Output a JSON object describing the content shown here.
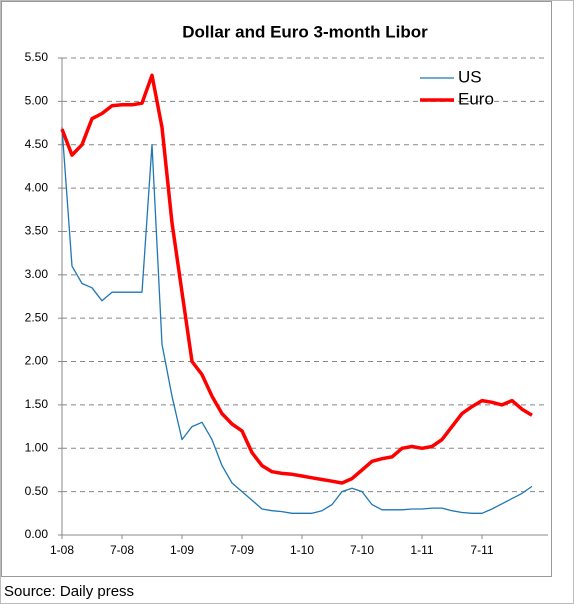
{
  "chart_data": {
    "type": "line",
    "title": "Dollar and Euro 3-month Libor",
    "source": "Source: Daily press",
    "x": [
      "2008-01",
      "2008-02",
      "2008-03",
      "2008-04",
      "2008-05",
      "2008-06",
      "2008-07",
      "2008-08",
      "2008-09",
      "2008-10",
      "2008-11",
      "2008-12",
      "2009-01",
      "2009-02",
      "2009-03",
      "2009-04",
      "2009-05",
      "2009-06",
      "2009-07",
      "2009-08",
      "2009-09",
      "2009-10",
      "2009-11",
      "2009-12",
      "2010-01",
      "2010-02",
      "2010-03",
      "2010-04",
      "2010-05",
      "2010-06",
      "2010-07",
      "2010-08",
      "2010-09",
      "2010-10",
      "2010-11",
      "2010-12",
      "2011-01",
      "2011-02",
      "2011-03",
      "2011-04",
      "2011-05",
      "2011-06",
      "2011-07",
      "2011-08",
      "2011-09",
      "2011-10",
      "2011-11",
      "2011-12"
    ],
    "series": [
      {
        "name": "US",
        "color": "#1f77b4",
        "width": 1.3,
        "values": [
          4.7,
          3.1,
          2.9,
          2.85,
          2.7,
          2.8,
          2.8,
          2.8,
          2.8,
          4.5,
          2.2,
          1.6,
          1.1,
          1.25,
          1.3,
          1.1,
          0.8,
          0.6,
          0.5,
          0.4,
          0.3,
          0.28,
          0.27,
          0.25,
          0.25,
          0.25,
          0.28,
          0.35,
          0.5,
          0.54,
          0.5,
          0.35,
          0.29,
          0.29,
          0.29,
          0.3,
          0.3,
          0.31,
          0.31,
          0.28,
          0.26,
          0.25,
          0.25,
          0.3,
          0.36,
          0.42,
          0.48,
          0.56
        ]
      },
      {
        "name": "Euro",
        "color": "#ff0000",
        "width": 3.5,
        "values": [
          4.68,
          4.38,
          4.5,
          4.8,
          4.86,
          4.95,
          4.96,
          4.96,
          4.98,
          5.3,
          4.7,
          3.6,
          2.8,
          2.0,
          1.85,
          1.6,
          1.4,
          1.28,
          1.2,
          0.95,
          0.8,
          0.73,
          0.71,
          0.7,
          0.68,
          0.66,
          0.64,
          0.62,
          0.6,
          0.65,
          0.75,
          0.85,
          0.88,
          0.9,
          1.0,
          1.02,
          1.0,
          1.02,
          1.1,
          1.25,
          1.4,
          1.48,
          1.55,
          1.53,
          1.5,
          1.55,
          1.45,
          1.38
        ]
      }
    ],
    "xlim": [
      "2008-01",
      "2012-01"
    ],
    "xticks": [
      {
        "value": "2008-01",
        "label": "1-08"
      },
      {
        "value": "2008-07",
        "label": "7-08"
      },
      {
        "value": "2009-01",
        "label": "1-09"
      },
      {
        "value": "2009-07",
        "label": "7-09"
      },
      {
        "value": "2010-01",
        "label": "1-10"
      },
      {
        "value": "2010-07",
        "label": "7-10"
      },
      {
        "value": "2011-01",
        "label": "1-11"
      },
      {
        "value": "2011-07",
        "label": "7-11"
      }
    ],
    "ylim": [
      0,
      5.5
    ],
    "yticks": [
      {
        "value": 0,
        "label": "0.00"
      },
      {
        "value": 0.5,
        "label": "0.50"
      },
      {
        "value": 1,
        "label": "1.00"
      },
      {
        "value": 1.5,
        "label": "1.50"
      },
      {
        "value": 2,
        "label": "2.00"
      },
      {
        "value": 2.5,
        "label": "2.50"
      },
      {
        "value": 3,
        "label": "3.00"
      },
      {
        "value": 3.5,
        "label": "3.50"
      },
      {
        "value": 4,
        "label": "4.00"
      },
      {
        "value": 4.5,
        "label": "4.50"
      },
      {
        "value": 5,
        "label": "5.00"
      },
      {
        "value": 5.5,
        "label": "5.50"
      }
    ],
    "grid": true,
    "legend": "top-right"
  }
}
